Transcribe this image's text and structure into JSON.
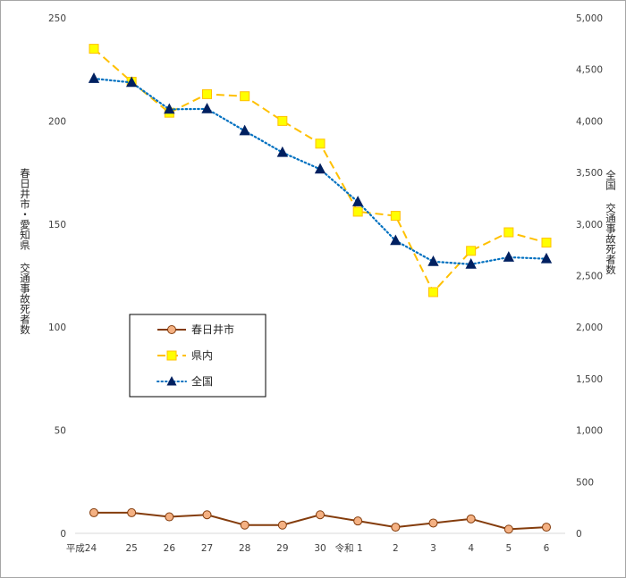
{
  "chart_data": {
    "type": "line",
    "categories": [
      "平成24",
      "25",
      "26",
      "27",
      "28",
      "29",
      "30",
      "令和 1",
      "2",
      "3",
      "4",
      "5",
      "6"
    ],
    "y_left": {
      "label": "春日井市・愛知県 交通事故死者数",
      "ticks": [
        "0",
        "50",
        "100",
        "150",
        "200",
        "250"
      ],
      "min": 0,
      "max": 250
    },
    "y_right": {
      "label": "全国 交通事故死者数",
      "ticks": [
        "0",
        "500",
        "1,000",
        "1,500",
        "2,000",
        "2,500",
        "3,000",
        "3,500",
        "4,000",
        "4,500",
        "5,000"
      ],
      "min": 0,
      "max": 5000
    },
    "grid": false,
    "legend_position": "left-middle",
    "series": [
      {
        "name": "春日井市",
        "axis": "left",
        "color": "#843c0c",
        "marker_fill": "#f4b183",
        "marker": "circle",
        "dash": "solid",
        "values": [
          10,
          10,
          8,
          9,
          4,
          4,
          9,
          6,
          3,
          5,
          7,
          2,
          3
        ]
      },
      {
        "name": "県内",
        "axis": "left",
        "color": "#ffc000",
        "marker_fill": "#ffff00",
        "marker": "square",
        "dash": "dash",
        "values": [
          235,
          219,
          204,
          213,
          212,
          200,
          189,
          156,
          154,
          117,
          137,
          146,
          141
        ]
      },
      {
        "name": "全国",
        "axis": "right",
        "color": "#0070c0",
        "marker_fill": "#002060",
        "marker": "triangle",
        "dash": "dot",
        "values": [
          4411,
          4373,
          4113,
          4117,
          3904,
          3694,
          3532,
          3215,
          2839,
          2636,
          2610,
          2678,
          2663
        ]
      }
    ]
  }
}
